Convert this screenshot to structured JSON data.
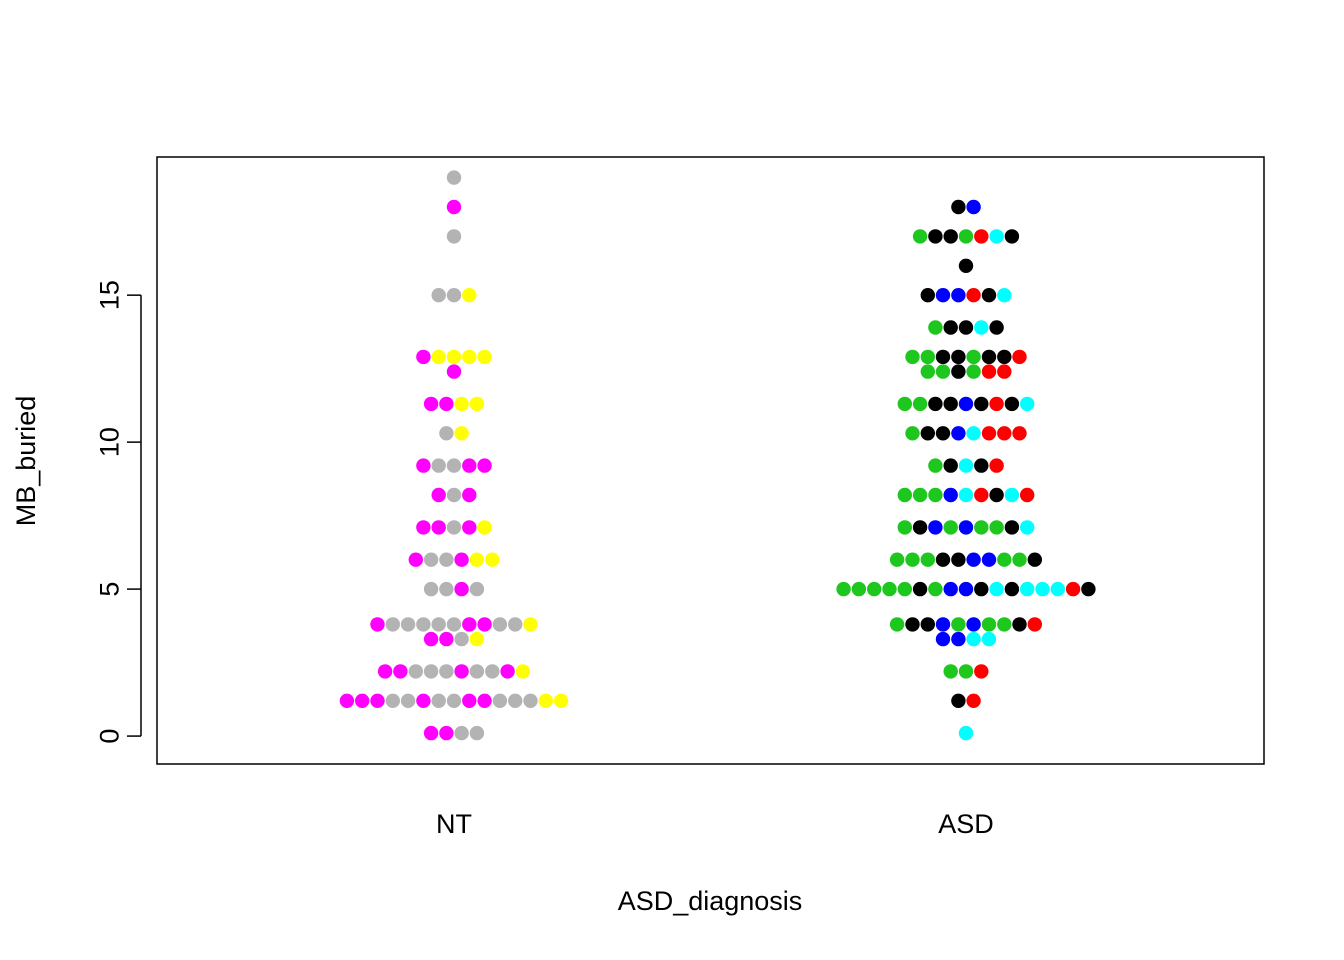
{
  "chart_data": {
    "type": "scatter",
    "style": "beeswarm",
    "xlabel": "ASD_diagnosis",
    "ylabel": "MB_buried",
    "categories": [
      "NT",
      "ASD"
    ],
    "ylim": [
      -1,
      19
    ],
    "yticks": [
      0,
      5,
      10,
      15
    ],
    "grid": false,
    "legend": "none",
    "colors": {
      "magenta": "#ff00ff",
      "gray": "#b3b3b3",
      "yellow": "#ffff00",
      "green": "#1ec71e",
      "black": "#000000",
      "blue": "#0000ff",
      "red": "#ff0000",
      "cyan": "#00ffff"
    },
    "groups": [
      {
        "category": "NT",
        "rows": [
          {
            "y": 19.0,
            "colors": [
              "gray"
            ]
          },
          {
            "y": 18.0,
            "colors": [
              "magenta"
            ]
          },
          {
            "y": 17.0,
            "colors": [
              "gray"
            ]
          },
          {
            "y": 15.0,
            "colors": [
              "gray",
              "gray",
              "yellow"
            ]
          },
          {
            "y": 12.9,
            "colors": [
              "magenta",
              "yellow",
              "yellow",
              "yellow",
              "yellow"
            ]
          },
          {
            "y": 12.4,
            "colors": [
              "magenta"
            ]
          },
          {
            "y": 11.3,
            "colors": [
              "magenta",
              "magenta",
              "yellow",
              "yellow"
            ]
          },
          {
            "y": 10.3,
            "colors": [
              "gray",
              "yellow"
            ]
          },
          {
            "y": 9.2,
            "colors": [
              "magenta",
              "gray",
              "gray",
              "magenta",
              "magenta"
            ]
          },
          {
            "y": 8.2,
            "colors": [
              "magenta",
              "gray",
              "magenta"
            ]
          },
          {
            "y": 7.1,
            "colors": [
              "magenta",
              "magenta",
              "gray",
              "magenta",
              "yellow"
            ]
          },
          {
            "y": 6.0,
            "colors": [
              "magenta",
              "gray",
              "gray",
              "magenta",
              "yellow",
              "yellow"
            ]
          },
          {
            "y": 5.0,
            "colors": [
              "gray",
              "gray",
              "magenta",
              "gray"
            ]
          },
          {
            "y": 3.8,
            "colors": [
              "magenta",
              "gray",
              "gray",
              "gray",
              "gray",
              "gray",
              "magenta",
              "magenta",
              "gray",
              "gray",
              "yellow"
            ]
          },
          {
            "y": 3.3,
            "colors": [
              "magenta",
              "magenta",
              "gray",
              "yellow"
            ]
          },
          {
            "y": 2.2,
            "colors": [
              "magenta",
              "magenta",
              "gray",
              "gray",
              "gray",
              "magenta",
              "gray",
              "gray",
              "magenta",
              "yellow"
            ]
          },
          {
            "y": 1.2,
            "colors": [
              "magenta",
              "magenta",
              "magenta",
              "gray",
              "gray",
              "magenta",
              "gray",
              "gray",
              "magenta",
              "magenta",
              "gray",
              "gray",
              "gray",
              "yellow",
              "yellow"
            ]
          },
          {
            "y": 0.1,
            "colors": [
              "magenta",
              "magenta",
              "gray",
              "gray"
            ]
          }
        ]
      },
      {
        "category": "ASD",
        "rows": [
          {
            "y": 18.0,
            "colors": [
              "black",
              "blue"
            ]
          },
          {
            "y": 17.0,
            "colors": [
              "green",
              "black",
              "black",
              "green",
              "red",
              "cyan",
              "black"
            ]
          },
          {
            "y": 16.0,
            "colors": [
              "black"
            ]
          },
          {
            "y": 15.0,
            "colors": [
              "black",
              "blue",
              "blue",
              "red",
              "black",
              "cyan"
            ]
          },
          {
            "y": 13.9,
            "colors": [
              "green",
              "black",
              "black",
              "cyan",
              "black"
            ]
          },
          {
            "y": 12.9,
            "colors": [
              "green",
              "green",
              "black",
              "black",
              "green",
              "black",
              "black",
              "red"
            ]
          },
          {
            "y": 12.4,
            "colors": [
              "green",
              "green",
              "black",
              "green",
              "red",
              "red"
            ]
          },
          {
            "y": 11.3,
            "colors": [
              "green",
              "green",
              "black",
              "black",
              "blue",
              "black",
              "red",
              "black",
              "cyan"
            ]
          },
          {
            "y": 10.3,
            "colors": [
              "green",
              "black",
              "black",
              "blue",
              "cyan",
              "red",
              "red",
              "red"
            ]
          },
          {
            "y": 9.2,
            "colors": [
              "green",
              "black",
              "cyan",
              "black",
              "red"
            ]
          },
          {
            "y": 8.2,
            "colors": [
              "green",
              "green",
              "green",
              "blue",
              "cyan",
              "red",
              "black",
              "cyan",
              "red"
            ]
          },
          {
            "y": 7.1,
            "colors": [
              "green",
              "black",
              "blue",
              "green",
              "blue",
              "green",
              "green",
              "black",
              "cyan"
            ]
          },
          {
            "y": 6.0,
            "colors": [
              "green",
              "green",
              "green",
              "black",
              "black",
              "blue",
              "blue",
              "green",
              "green",
              "black"
            ]
          },
          {
            "y": 5.0,
            "colors": [
              "green",
              "green",
              "green",
              "green",
              "green",
              "black",
              "green",
              "blue",
              "blue",
              "black",
              "cyan",
              "black",
              "cyan",
              "cyan",
              "cyan",
              "red",
              "black"
            ]
          },
          {
            "y": 3.8,
            "colors": [
              "green",
              "black",
              "black",
              "blue",
              "green",
              "blue",
              "green",
              "green",
              "black",
              "red"
            ]
          },
          {
            "y": 3.3,
            "colors": [
              "blue",
              "blue",
              "cyan",
              "cyan"
            ]
          },
          {
            "y": 2.2,
            "colors": [
              "green",
              "green",
              "red"
            ]
          },
          {
            "y": 1.2,
            "colors": [
              "black",
              "red"
            ]
          },
          {
            "y": 0.1,
            "colors": [
              "cyan"
            ]
          }
        ]
      }
    ]
  }
}
